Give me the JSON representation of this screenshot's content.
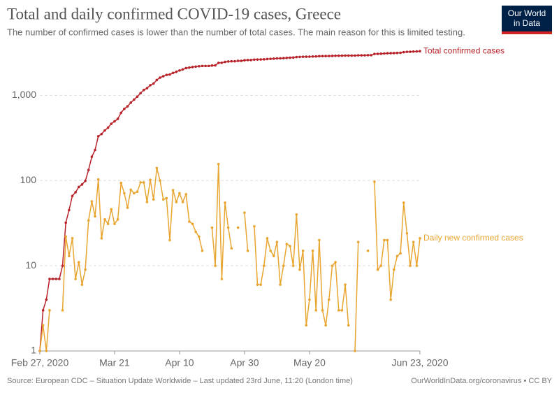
{
  "chart_data": {
    "type": "line",
    "title": "Total and daily confirmed COVID-19 cases, Greece",
    "subtitle": "The number of confirmed cases is lower than the number of total cases. The main reason for this is limited testing.",
    "source": "Source: European CDC – Situation Update Worldwide – Last updated 23rd June, 11:20 (London time)",
    "credit": "OurWorldInData.org/coronavirus • CC BY",
    "logo": [
      "Our World",
      "in Data"
    ],
    "log_scale": true,
    "grid": true,
    "x": [
      "2020-02-27",
      "2020-02-28",
      "2020-02-29",
      "2020-03-01",
      "2020-03-02",
      "2020-03-03",
      "2020-03-04",
      "2020-03-05",
      "2020-03-06",
      "2020-03-07",
      "2020-03-08",
      "2020-03-09",
      "2020-03-10",
      "2020-03-11",
      "2020-03-12",
      "2020-03-13",
      "2020-03-14",
      "2020-03-15",
      "2020-03-16",
      "2020-03-17",
      "2020-03-18",
      "2020-03-19",
      "2020-03-20",
      "2020-03-21",
      "2020-03-22",
      "2020-03-23",
      "2020-03-24",
      "2020-03-25",
      "2020-03-26",
      "2020-03-27",
      "2020-03-28",
      "2020-03-29",
      "2020-03-30",
      "2020-03-31",
      "2020-04-01",
      "2020-04-02",
      "2020-04-03",
      "2020-04-04",
      "2020-04-05",
      "2020-04-06",
      "2020-04-07",
      "2020-04-08",
      "2020-04-09",
      "2020-04-10",
      "2020-04-11",
      "2020-04-12",
      "2020-04-13",
      "2020-04-14",
      "2020-04-15",
      "2020-04-16",
      "2020-04-17",
      "2020-04-18",
      "2020-04-19",
      "2020-04-20",
      "2020-04-21",
      "2020-04-22",
      "2020-04-23",
      "2020-04-24",
      "2020-04-25",
      "2020-04-26",
      "2020-04-27",
      "2020-04-28",
      "2020-04-29",
      "2020-04-30",
      "2020-05-01",
      "2020-05-02",
      "2020-05-03",
      "2020-05-04",
      "2020-05-05",
      "2020-05-06",
      "2020-05-07",
      "2020-05-08",
      "2020-05-09",
      "2020-05-10",
      "2020-05-11",
      "2020-05-12",
      "2020-05-13",
      "2020-05-14",
      "2020-05-15",
      "2020-05-16",
      "2020-05-17",
      "2020-05-18",
      "2020-05-19",
      "2020-05-20",
      "2020-05-21",
      "2020-05-22",
      "2020-05-23",
      "2020-05-24",
      "2020-05-25",
      "2020-05-26",
      "2020-05-27",
      "2020-05-28",
      "2020-05-29",
      "2020-05-30",
      "2020-05-31",
      "2020-06-01",
      "2020-06-02",
      "2020-06-03",
      "2020-06-04",
      "2020-06-05",
      "2020-06-06",
      "2020-06-07",
      "2020-06-08",
      "2020-06-09",
      "2020-06-10",
      "2020-06-11",
      "2020-06-12",
      "2020-06-13",
      "2020-06-14",
      "2020-06-15",
      "2020-06-16",
      "2020-06-17",
      "2020-06-18",
      "2020-06-19",
      "2020-06-20",
      "2020-06-21",
      "2020-06-22",
      "2020-06-23"
    ],
    "xlim": [
      "2020-02-27",
      "2020-06-23"
    ],
    "xticks": [
      {
        "value": "2020-02-27",
        "label": "Feb 27, 2020"
      },
      {
        "value": "2020-03-21",
        "label": "Mar 21"
      },
      {
        "value": "2020-04-10",
        "label": "Apr 10"
      },
      {
        "value": "2020-04-30",
        "label": "Apr 30"
      },
      {
        "value": "2020-05-20",
        "label": "May 20"
      },
      {
        "value": "2020-06-23",
        "label": "Jun 23, 2020"
      }
    ],
    "ylim": [
      1,
      4000
    ],
    "yticks": [
      1,
      10,
      100,
      {
        "value": 1000,
        "label": "1,000"
      }
    ],
    "series": [
      {
        "name": "Total confirmed cases",
        "color": "#b8232a",
        "values": [
          1,
          3,
          4,
          7,
          7,
          7,
          7,
          10,
          32,
          45,
          66,
          73,
          84,
          90,
          99,
          133,
          190,
          228,
          331,
          352,
          387,
          418,
          464,
          495,
          530,
          624,
          695,
          743,
          821,
          892,
          966,
          1061,
          1156,
          1212,
          1314,
          1374,
          1514,
          1614,
          1674,
          1736,
          1756,
          1833,
          1889,
          1960,
          2016,
          2085,
          2118,
          2149,
          2174,
          2196,
          2211,
          2211,
          2211,
          2239,
          2249,
          2405,
          2412,
          2467,
          2495,
          2511,
          2511,
          2539,
          2539,
          2581,
          2596,
          2596,
          2625,
          2631,
          2637,
          2647,
          2668,
          2683,
          2696,
          2715,
          2721,
          2731,
          2749,
          2766,
          2776,
          2816,
          2825,
          2840,
          2842,
          2846,
          2861,
          2864,
          2884,
          2887,
          2889,
          2893,
          2903,
          2914,
          2917,
          2920,
          2926,
          2928,
          2928,
          2929,
          2948,
          2948,
          2948,
          2963,
          2963,
          3060,
          3069,
          3079,
          3099,
          3119,
          3123,
          3132,
          3145,
          3159,
          3214,
          3238,
          3248,
          3267,
          3277,
          3298
        ]
      },
      {
        "name": "Daily new confirmed cases",
        "color": "#e8a530",
        "values": [
          1,
          2,
          1,
          3,
          null,
          null,
          null,
          3,
          22,
          13,
          21,
          7,
          11,
          6,
          9,
          34,
          57,
          38,
          103,
          21,
          35,
          31,
          46,
          31,
          35,
          94,
          71,
          48,
          78,
          71,
          74,
          95,
          95,
          56,
          102,
          60,
          140,
          100,
          60,
          62,
          20,
          77,
          56,
          71,
          56,
          69,
          33,
          31,
          25,
          22,
          15,
          null,
          null,
          28,
          10,
          156,
          7,
          55,
          28,
          16,
          null,
          28,
          null,
          42,
          15,
          null,
          29,
          6,
          6,
          10,
          21,
          15,
          13,
          19,
          6,
          10,
          18,
          17,
          10,
          40,
          9,
          15,
          2,
          4,
          15,
          3,
          20,
          3,
          2,
          4,
          10,
          11,
          3,
          3,
          6,
          2,
          null,
          1,
          19,
          null,
          null,
          15,
          null,
          97,
          9,
          10,
          20,
          20,
          4,
          9,
          13,
          14,
          55,
          24,
          10,
          19,
          10,
          21
        ]
      }
    ]
  }
}
